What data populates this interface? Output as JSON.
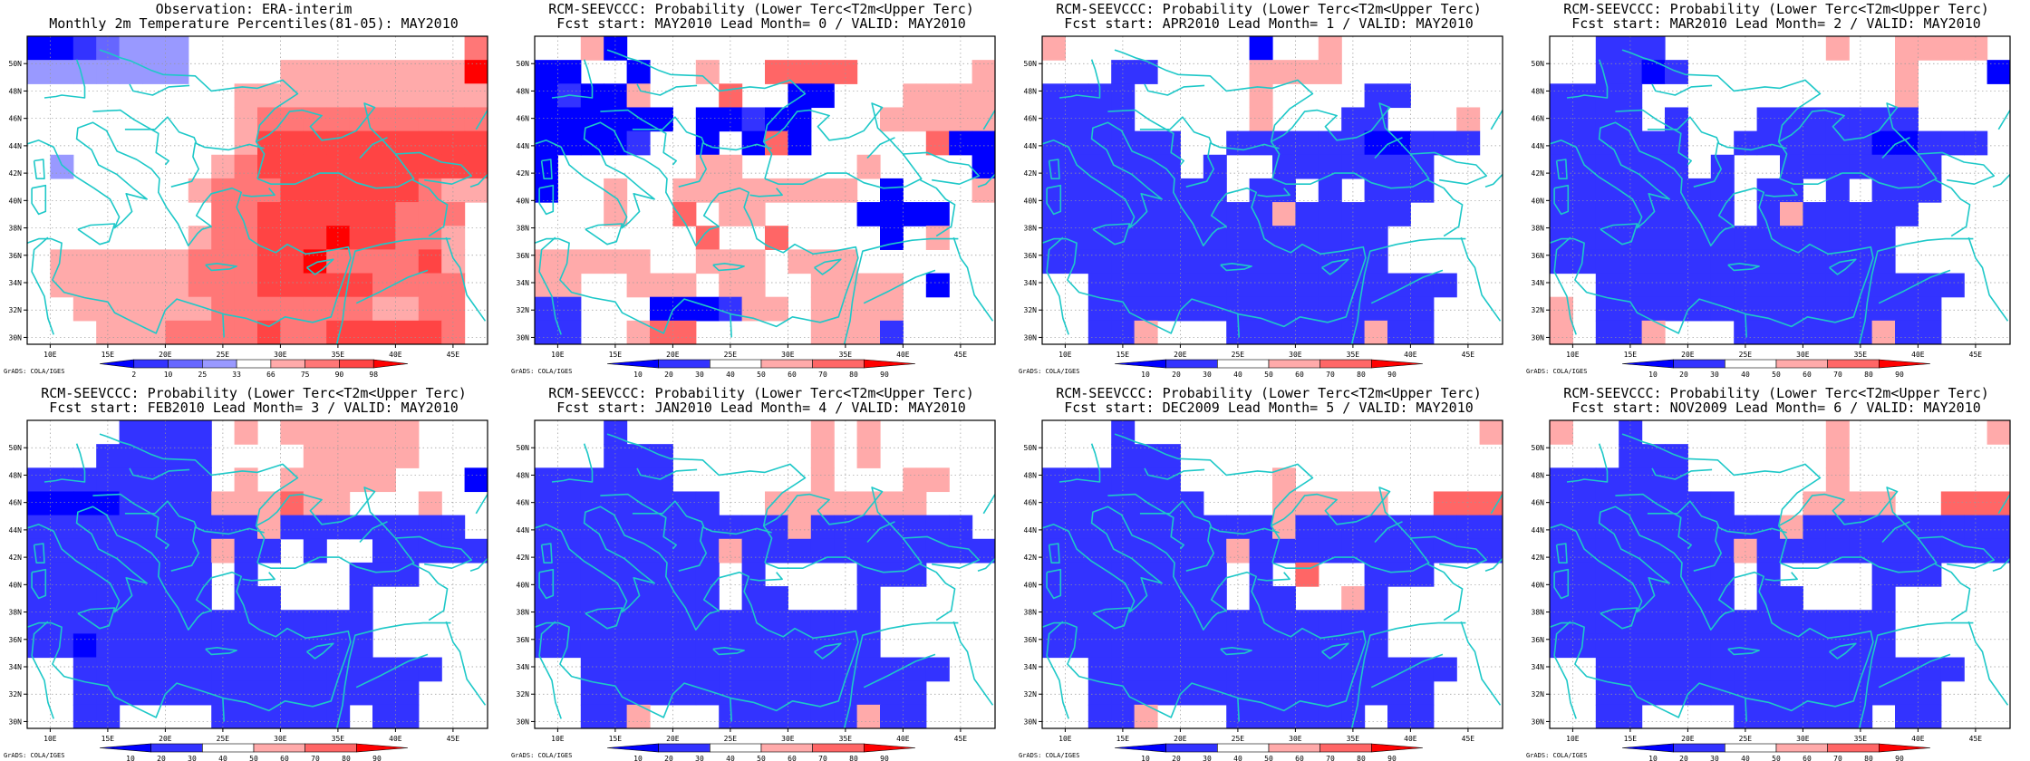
{
  "chart_data": [
    {
      "type": "heatmap",
      "title": "Observation: ERA-interim",
      "subtitle": "Monthly 2m Temperature Percentiles(81-05): MAY2010",
      "credit": "GrADS: COLA/IGES",
      "colorbar_labels": [
        "2",
        "10",
        "25",
        "33",
        "66",
        "75",
        "90",
        "98"
      ],
      "colors": [
        "#0000ff",
        "#3333ff",
        "#6666ff",
        "#9999ff",
        "#ffffff",
        "#ffaaaa",
        "#ff7777",
        "#ff4444",
        "#ff0000"
      ],
      "x_ticks": [
        "10E",
        "15E",
        "20E",
        "25E",
        "30E",
        "35E",
        "40E",
        "45E"
      ],
      "y_ticks": [
        "30N",
        "32N",
        "34N",
        "36N",
        "38N",
        "40N",
        "42N",
        "44N",
        "46N",
        "48N",
        "50N"
      ],
      "grid": true,
      "cells": [
        "00123334444444444446",
        "33333334444555555558",
        "44444444455555555555",
        "44444444456666666666",
        "44444444457777777777",
        "43444444567777777777",
        "44444445666777777655",
        "44444444667777776664",
        "44444445667778776654",
        "45555556667786666754",
        "45555556667777766664",
        "44555555666666655664",
        "44455566667667777764"
      ]
    },
    {
      "type": "heatmap",
      "title": "RCM-SEEVCCC: Probability (Lower Terc<T2m<Upper Terc)",
      "subtitle": "Fcst start: MAY2010  Lead Month= 0 / VALID: MAY2010",
      "credit": "GrADS: COLA/IGES",
      "colorbar_labels": [
        "10",
        "20",
        "30",
        "40",
        "50",
        "60",
        "70",
        "80",
        "90"
      ],
      "colors": [
        "#0000ff",
        "#3333ff",
        "#ffffff",
        "#ffaaaa",
        "#ff6666",
        "#ff0000"
      ],
      "x_ticks": [
        "10E",
        "15E",
        "20E",
        "25E",
        "30E",
        "35E",
        "40E",
        "45E"
      ],
      "y_ticks": [
        "30N",
        "32N",
        "34N",
        "36N",
        "38N",
        "40N",
        "42N",
        "44N",
        "46N",
        "48N",
        "50N"
      ],
      "grid": true,
      "cells": [
        "22302222222222222222",
        "00220223224444222223",
        "01003222422002223333",
        "00000020010022233333",
        "00001220204022222400",
        "02222223322222322220",
        "02232233333333202223",
        "22232242332222000022",
        "22222224224222202322",
        "33333223332333222222",
        "33223332332233332022",
        "11222000133233332222",
        "11223442222233312222"
      ]
    },
    {
      "type": "heatmap",
      "title": "RCM-SEEVCCC: Probability (Lower Terc<T2m<Upper Terc)",
      "subtitle": "Fcst start: APR2010  Lead Month= 1 / VALID: MAY2010",
      "credit": "GrADS: COLA/IGES",
      "colorbar_labels": [
        "10",
        "20",
        "30",
        "40",
        "50",
        "60",
        "70",
        "80",
        "90"
      ],
      "colors": [
        "#0000ff",
        "#3333ff",
        "#ffffff",
        "#ffaaaa",
        "#ff6666",
        "#ff0000"
      ],
      "x_ticks": [
        "10E",
        "15E",
        "20E",
        "25E",
        "30E",
        "35E",
        "40E",
        "45E"
      ],
      "y_ticks": [
        "30N",
        "32N",
        "34N",
        "36N",
        "38N",
        "40N",
        "42N",
        "44N",
        "46N",
        "48N",
        "50N"
      ],
      "grid": true,
      "cells": [
        "32222222202232222222",
        "22211222233332222222",
        "11112222232222112222",
        "11112222232221122232",
        "11111122111111001112",
        "11111121221111111222",
        "11111111211212111222",
        "11111111113111112222",
        "11111111111111122222",
        "11111111111111122222",
        "22111111111111111122",
        "22111111111111111222",
        "22113222111111311222"
      ]
    },
    {
      "type": "heatmap",
      "title": "RCM-SEEVCCC: Probability (Lower Terc<T2m<Upper Terc)",
      "subtitle": "Fcst start: MAR2010  Lead Month= 2 / VALID: MAY2010",
      "credit": "GrADS: COLA/IGES",
      "colorbar_labels": [
        "10",
        "20",
        "30",
        "40",
        "50",
        "60",
        "70",
        "80",
        "90"
      ],
      "colors": [
        "#0000ff",
        "#3333ff",
        "#ffffff",
        "#ffaaaa",
        "#ff6666",
        "#ff0000"
      ],
      "x_ticks": [
        "10E",
        "15E",
        "20E",
        "25E",
        "30E",
        "35E",
        "40E",
        "45E"
      ],
      "y_ticks": [
        "30N",
        "32N",
        "34N",
        "36N",
        "38N",
        "40N",
        "42N",
        "44N",
        "46N",
        "48N",
        "50N"
      ],
      "grid": true,
      "cells": [
        "22111222222232233332",
        "22110122222222232220",
        "11112222222222232222",
        "11112122211111112222",
        "11111122111111001112",
        "11111121221111111222",
        "11111111211212111222",
        "11111111213111112222",
        "11111111111111122222",
        "11111111111111122222",
        "22111111111111111122",
        "32111111111111111222",
        "32113222111111311222"
      ]
    },
    {
      "type": "heatmap",
      "title": "RCM-SEEVCCC: Probability (Lower Terc<T2m<Upper Terc)",
      "subtitle": "Fcst start: FEB2010  Lead Month= 3 / VALID: MAY2010",
      "credit": "GrADS: COLA/IGES",
      "colorbar_labels": [
        "10",
        "20",
        "30",
        "40",
        "50",
        "60",
        "70",
        "80",
        "90"
      ],
      "colors": [
        "#0000ff",
        "#3333ff",
        "#ffffff",
        "#ffaaaa",
        "#ff6666",
        "#ff0000"
      ],
      "x_ticks": [
        "10E",
        "15E",
        "20E",
        "25E",
        "30E",
        "35E",
        "40E",
        "45E"
      ],
      "y_ticks": [
        "30N",
        "32N",
        "34N",
        "36N",
        "38N",
        "40N",
        "42N",
        "44N",
        "46N",
        "48N",
        "50N"
      ],
      "grid": true,
      "cells": [
        "22221111232333333222",
        "22211111222233333222",
        "11111111232333332220",
        "00001111333433222322",
        "11111111113111111112",
        "11111111311212211111",
        "11111111212222111222",
        "11111111211222122222",
        "11111111111111122222",
        "11011111111111122222",
        "22111111111111111122",
        "22111111111111111222",
        "22112222111111211222"
      ]
    },
    {
      "type": "heatmap",
      "title": "RCM-SEEVCCC: Probability (Lower Terc<T2m<Upper Terc)",
      "subtitle": "Fcst start: JAN2010  Lead Month= 4 / VALID: MAY2010",
      "credit": "GrADS: COLA/IGES",
      "colorbar_labels": [
        "10",
        "20",
        "30",
        "40",
        "50",
        "60",
        "70",
        "80",
        "90"
      ],
      "colors": [
        "#0000ff",
        "#3333ff",
        "#ffffff",
        "#ffaaaa",
        "#ff6666",
        "#ff0000"
      ],
      "x_ticks": [
        "10E",
        "15E",
        "20E",
        "25E",
        "30E",
        "35E",
        "40E",
        "45E"
      ],
      "y_ticks": [
        "30N",
        "32N",
        "34N",
        "36N",
        "38N",
        "40N",
        "42N",
        "44N",
        "46N",
        "48N",
        "50N"
      ],
      "grid": true,
      "cells": [
        "22212222222232322222",
        "22211122222232322222",
        "11111122222232223322",
        "11111111223333333222",
        "11111111111311111112",
        "11111111311111111111",
        "11111111212222111222",
        "11111111211222122222",
        "11111111111111122222",
        "11111111111111122222",
        "22111111111111111122",
        "22111111111111111222",
        "22113222111111311222"
      ]
    },
    {
      "type": "heatmap",
      "title": "RCM-SEEVCCC: Probability (Lower Terc<T2m<Upper Terc)",
      "subtitle": "Fcst start: DEC2009  Lead Month= 5 / VALID: MAY2010",
      "credit": "GrADS: COLA/IGES",
      "colorbar_labels": [
        "10",
        "20",
        "30",
        "40",
        "50",
        "60",
        "70",
        "80",
        "90"
      ],
      "colors": [
        "#0000ff",
        "#3333ff",
        "#ffffff",
        "#ffaaaa",
        "#ff6666",
        "#ff0000"
      ],
      "x_ticks": [
        "10E",
        "15E",
        "20E",
        "25E",
        "30E",
        "35E",
        "40E",
        "45E"
      ],
      "y_ticks": [
        "30N",
        "32N",
        "34N",
        "36N",
        "38N",
        "40N",
        "42N",
        "44N",
        "46N",
        "48N",
        "50N"
      ],
      "grid": true,
      "cells": [
        "22212222222222222223",
        "22211122222222222222",
        "11111122223222222222",
        "11111112223333322444",
        "11111111113111111111",
        "11111111311111111111",
        "11111111212422111222",
        "11111111211223122222",
        "11111111111111122222",
        "11111111111111122222",
        "22111111111111111122",
        "22111111111111111222",
        "22113222111111211222"
      ]
    },
    {
      "type": "heatmap",
      "title": "RCM-SEEVCCC: Probability (Lower Terc<T2m<Upper Terc)",
      "subtitle": "Fcst start: NOV2009  Lead Month= 6 / VALID: MAY2010",
      "credit": "GrADS: COLA/IGES",
      "colorbar_labels": [
        "10",
        "20",
        "30",
        "40",
        "50",
        "60",
        "70",
        "80",
        "90"
      ],
      "colors": [
        "#0000ff",
        "#3333ff",
        "#ffffff",
        "#ffaaaa",
        "#ff6666",
        "#ff0000"
      ],
      "x_ticks": [
        "10E",
        "15E",
        "20E",
        "25E",
        "30E",
        "35E",
        "40E",
        "45E"
      ],
      "y_ticks": [
        "30N",
        "32N",
        "34N",
        "36N",
        "38N",
        "40N",
        "42N",
        "44N",
        "46N",
        "48N",
        "50N"
      ],
      "grid": true,
      "cells": [
        "32212222222232222223",
        "22211122222232222222",
        "11111122222232222222",
        "11111111222333322444",
        "11111111113111111111",
        "11111111311111111111",
        "11111111212222111222",
        "11111111211222122222",
        "11111111111111122222",
        "11111111111111122222",
        "22111111111111111122",
        "22111111111111111222",
        "22112222111111211222"
      ]
    }
  ]
}
